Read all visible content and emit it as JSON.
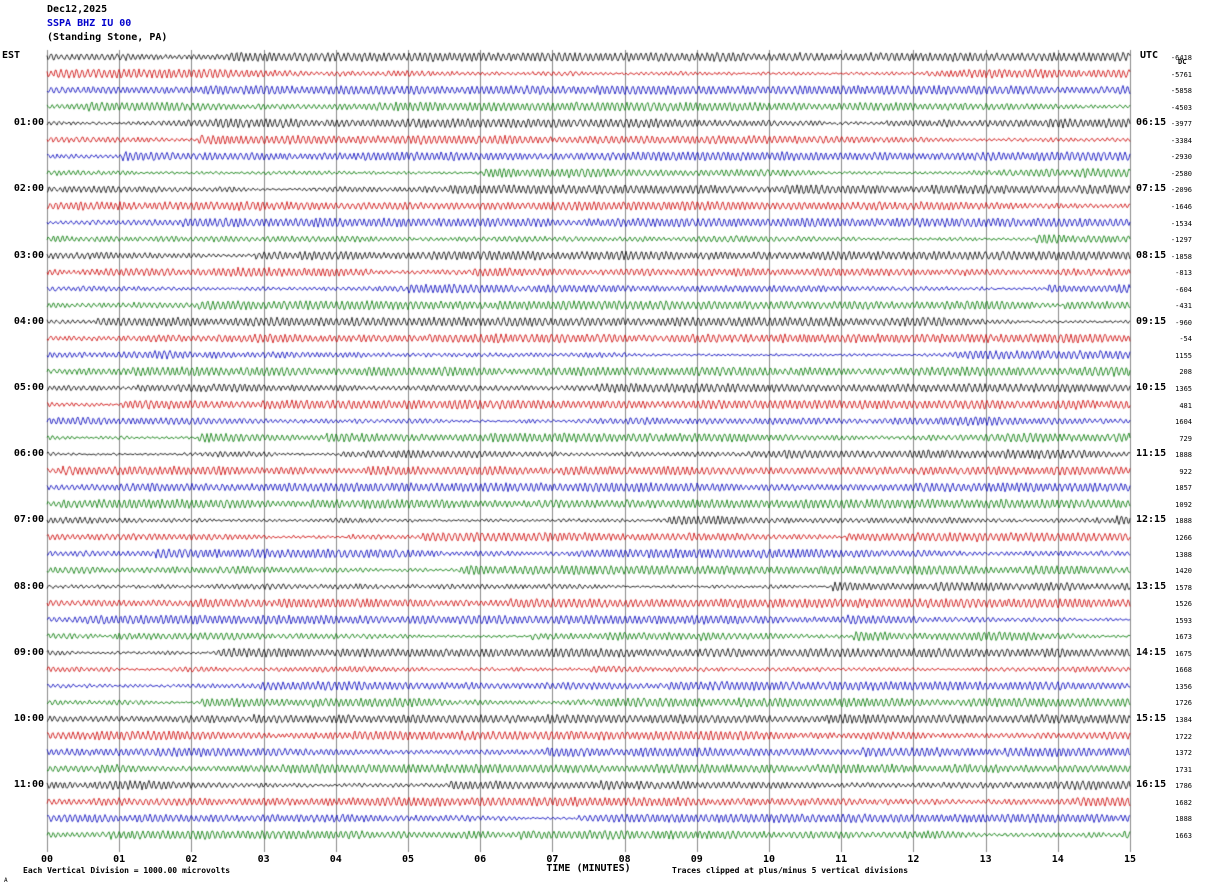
{
  "header": {
    "date": "Dec12,2025",
    "station": "SSPA BHZ IU 00",
    "location": "(Standing Stone, PA)"
  },
  "axes": {
    "left_label": "EST",
    "right_label": "UTC",
    "dc_label": "DC",
    "x_label": "TIME (MINUTES)"
  },
  "footer": {
    "left": "Each Vertical Division = 1000.00 microvolts",
    "right": "Traces clipped at plus/minus 5 vertical divisions",
    "corner_mark": "A"
  },
  "chart_data": {
    "type": "seismogram",
    "title": "SSPA BHZ IU 00 (Standing Stone, PA) Dec12,2025 helicorder",
    "station": "SSPA BHZ IU 00",
    "station_name": "Standing Stone, PA",
    "date": "Dec12,2025",
    "xlabel": "TIME (MINUTES)",
    "x_ticks": [
      "00",
      "01",
      "02",
      "03",
      "04",
      "05",
      "06",
      "07",
      "08",
      "09",
      "10",
      "11",
      "12",
      "13",
      "14",
      "15"
    ],
    "x_range_minutes": [
      0,
      15
    ],
    "minutes_per_line": 15,
    "rows": 48,
    "traces_per_hour": 4,
    "trace_color_cycle": [
      "#000000",
      "#cc0000",
      "#0000bb",
      "#007700"
    ],
    "grid_color": "#8a8a8a",
    "left_axis": {
      "label": "EST",
      "hour_labels": [
        "01:00",
        "02:00",
        "03:00",
        "04:00",
        "05:00",
        "06:00",
        "07:00",
        "08:00",
        "09:00",
        "10:00",
        "11:00"
      ],
      "hour_label_row_indices": [
        4,
        8,
        12,
        16,
        20,
        24,
        28,
        32,
        36,
        40,
        44
      ]
    },
    "right_axis": {
      "label": "UTC",
      "hour_labels": [
        "06:15",
        "07:15",
        "08:15",
        "09:15",
        "10:15",
        "11:15",
        "12:15",
        "13:15",
        "14:15",
        "15:15",
        "16:15"
      ],
      "hour_label_row_indices": [
        4,
        8,
        12,
        16,
        20,
        24,
        28,
        32,
        36,
        40,
        44
      ],
      "dc_label": "DC",
      "dc_values": [
        "-6418",
        "-5761",
        "-5858",
        "-4503",
        "-3977",
        "-3384",
        "-2930",
        "-2580",
        "-2096",
        "-1646",
        "-1534",
        "-1297",
        "-1858",
        "-813",
        "-604",
        "-431",
        "-960",
        "-54",
        "1155",
        "208",
        "1365",
        "481",
        "1604",
        "729",
        "1888",
        "922",
        "1857",
        "1092",
        "1888",
        "1266",
        "1388",
        "1420",
        "1578",
        "1526",
        "1593",
        "1673",
        "1675",
        "1668",
        "1356",
        "1726",
        "1384",
        "1722",
        "1372",
        "1731",
        "1786",
        "1682",
        "1888",
        "1663"
      ]
    },
    "clip_divisions": 5,
    "microvolts_per_division": "1000.00",
    "waveform_note": "continuous microseismic background noise on every 15-minute trace; individual sample values not resolvable at this scale"
  }
}
